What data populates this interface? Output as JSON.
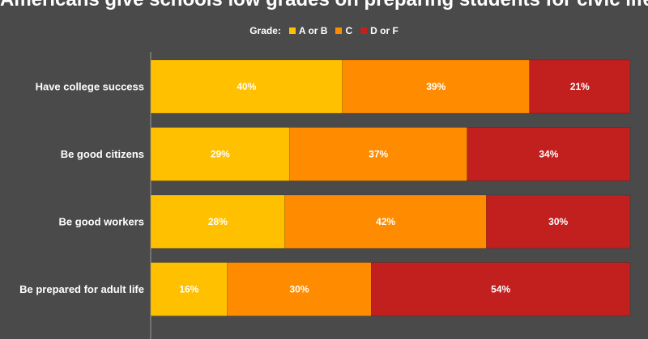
{
  "chart_data": {
    "type": "bar",
    "orientation": "horizontal",
    "stacked": true,
    "title": "Americans give schools low grades on preparing students for civic life",
    "legend_title": "Grade:",
    "legend_position": "top-center",
    "categories": [
      "Have college success",
      "Be good citizens",
      "Be good workers",
      "Be prepared for adult life"
    ],
    "series": [
      {
        "name": "A or B",
        "color": "#ffc000",
        "values": [
          40,
          29,
          28,
          16
        ]
      },
      {
        "name": "C",
        "color": "#ff8c00",
        "values": [
          39,
          37,
          42,
          30
        ]
      },
      {
        "name": "D or F",
        "color": "#c21f1f",
        "values": [
          21,
          34,
          30,
          54
        ]
      }
    ],
    "value_suffix": "%",
    "xlim": [
      0,
      100
    ],
    "grid": false
  }
}
